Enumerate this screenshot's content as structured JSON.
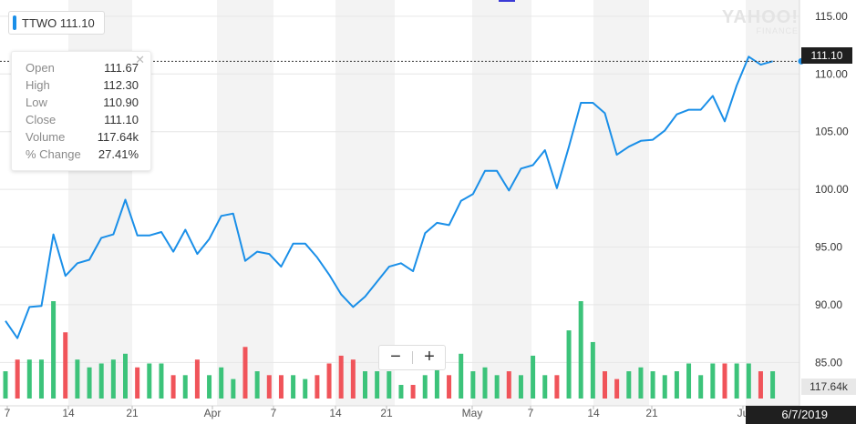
{
  "ticker": {
    "symbol": "TTWO",
    "last": "111.10",
    "color": "#1a8fe8"
  },
  "tooltip": {
    "rows": [
      {
        "label": "Open",
        "value": "111.67"
      },
      {
        "label": "High",
        "value": "112.30"
      },
      {
        "label": "Low",
        "value": "110.90"
      },
      {
        "label": "Close",
        "value": "111.10"
      },
      {
        "label": "Volume",
        "value": "117.64k"
      },
      {
        "label": "% Change",
        "value": "27.41%"
      }
    ],
    "close_icon": "close-icon"
  },
  "watermark": {
    "line1": "YAHOO!",
    "line2": "FINANCE"
  },
  "zoom": {
    "minus": "−",
    "plus": "+"
  },
  "crosshair": {
    "price_flag": "111.10",
    "volume_flag": "117.64k",
    "date_flag": "6/7/2019"
  },
  "chart_data": {
    "type": "line",
    "title": "",
    "y_axis": {
      "min": 84,
      "max": 115.7,
      "ticks": [
        "115.00",
        "110.00",
        "105.00",
        "100.00",
        "95.00",
        "90.00",
        "85.00"
      ]
    },
    "x_ticks": [
      "7",
      "14",
      "21",
      "Apr",
      "7",
      "14",
      "21",
      "May",
      "7",
      "14",
      "21",
      "Ju"
    ],
    "colors": {
      "line": "#1a8fe8",
      "up": "#3cc37a",
      "down": "#f0545a",
      "band": "#f3f3f3"
    },
    "series": [
      {
        "type": "line",
        "values": [
          88.6,
          87.1,
          89.8,
          89.9,
          96.1,
          92.5,
          93.6,
          93.9,
          95.8,
          96.1,
          99.1,
          96.0,
          96.0,
          96.3,
          94.6,
          96.5,
          94.4,
          95.7,
          97.7,
          97.9,
          93.8,
          94.6,
          94.4,
          93.3,
          95.3,
          95.3,
          94.1,
          92.6,
          90.9,
          89.8,
          90.7,
          92.0,
          93.3,
          93.6,
          92.9,
          96.2,
          97.1,
          96.9,
          99.0,
          99.6,
          101.6,
          101.6,
          99.9,
          101.8,
          102.1,
          103.4,
          100.1,
          103.7,
          107.5,
          107.5,
          106.6,
          103.0,
          103.7,
          104.2,
          104.3,
          105.1,
          106.5,
          106.9,
          106.9,
          108.1,
          105.9,
          109.0,
          111.5,
          110.8,
          111.1
        ]
      },
      {
        "type": "volume",
        "note": "relative volume (1.0 = tallest bar)",
        "values": [
          0.28,
          0.4,
          0.4,
          0.4,
          1.0,
          0.68,
          0.4,
          0.32,
          0.36,
          0.4,
          0.46,
          0.32,
          0.36,
          0.36,
          0.24,
          0.24,
          0.4,
          0.24,
          0.32,
          0.2,
          0.53,
          0.28,
          0.24,
          0.24,
          0.24,
          0.2,
          0.24,
          0.36,
          0.44,
          0.4,
          0.28,
          0.28,
          0.28,
          0.14,
          0.14,
          0.24,
          0.4,
          0.24,
          0.46,
          0.28,
          0.32,
          0.24,
          0.28,
          0.24,
          0.44,
          0.24,
          0.24,
          0.7,
          1.0,
          0.58,
          0.28,
          0.2,
          0.28,
          0.32,
          0.28,
          0.24,
          0.28,
          0.36,
          0.24,
          0.36,
          0.36,
          0.36,
          0.36,
          0.28,
          0.28
        ]
      }
    ]
  }
}
